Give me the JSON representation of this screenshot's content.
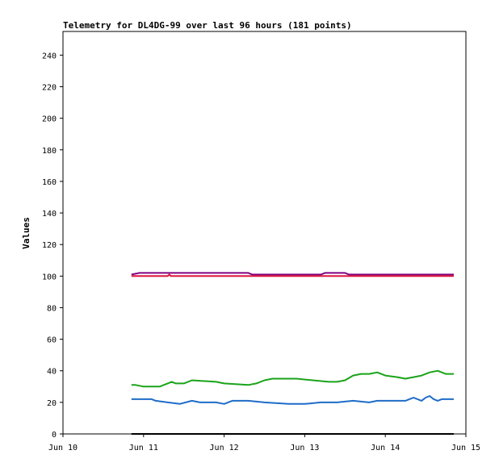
{
  "chart_data": {
    "type": "line",
    "title": "Telemetry for DL4DG-99 over last 96 hours (181 points)",
    "xlabel": "",
    "ylabel": "Values",
    "xlim": [
      0,
      5
    ],
    "ylim": [
      0,
      255
    ],
    "x_ticks": [
      0,
      1,
      2,
      3,
      4,
      5
    ],
    "x_tick_labels": [
      "Jun 10",
      "Jun 11",
      "Jun 12",
      "Jun 13",
      "Jun 14",
      "Jun 15"
    ],
    "y_ticks": [
      0,
      20,
      40,
      60,
      80,
      100,
      120,
      140,
      160,
      180,
      200,
      220,
      240
    ],
    "grid": false,
    "legend": "none",
    "series": [
      {
        "color": "#800080",
        "x": [
          0.85,
          0.95,
          1.3,
          2.3,
          2.35,
          3.2,
          3.25,
          3.5,
          3.55,
          4.85
        ],
        "y": [
          101,
          102,
          102,
          102,
          101,
          101,
          102,
          102,
          101,
          101
        ]
      },
      {
        "color": "#dc143c",
        "x": [
          0.85,
          1.3,
          1.32,
          1.34,
          4.85
        ],
        "y": [
          100,
          100,
          101,
          100,
          100
        ]
      },
      {
        "color": "#1aa31a",
        "x": [
          0.85,
          0.9,
          1.0,
          1.2,
          1.25,
          1.35,
          1.4,
          1.5,
          1.6,
          1.9,
          2.0,
          2.3,
          2.4,
          2.5,
          2.6,
          2.9,
          3.1,
          3.3,
          3.4,
          3.5,
          3.6,
          3.7,
          3.8,
          3.9,
          4.0,
          4.15,
          4.25,
          4.35,
          4.45,
          4.55,
          4.65,
          4.7,
          4.75,
          4.85
        ],
        "y": [
          31,
          31,
          30,
          30,
          31,
          33,
          32,
          32,
          34,
          33,
          32,
          31,
          32,
          34,
          35,
          35,
          34,
          33,
          33,
          34,
          37,
          38,
          38,
          39,
          37,
          36,
          35,
          36,
          37,
          39,
          40,
          39,
          38,
          38
        ]
      },
      {
        "color": "#1e6cc8",
        "x": [
          0.85,
          1.1,
          1.15,
          1.3,
          1.45,
          1.6,
          1.7,
          1.9,
          2.0,
          2.1,
          2.3,
          2.5,
          2.8,
          3.0,
          3.2,
          3.4,
          3.6,
          3.8,
          3.9,
          4.0,
          4.25,
          4.3,
          4.35,
          4.4,
          4.45,
          4.5,
          4.55,
          4.6,
          4.65,
          4.7,
          4.75,
          4.85
        ],
        "y": [
          22,
          22,
          21,
          20,
          19,
          21,
          20,
          20,
          19,
          21,
          21,
          20,
          19,
          19,
          20,
          20,
          21,
          20,
          21,
          21,
          21,
          22,
          23,
          22,
          21,
          23,
          24,
          22,
          21,
          22,
          22,
          22
        ]
      },
      {
        "color": "#000000",
        "x": [
          0.85,
          4.85
        ],
        "y": [
          0,
          0
        ]
      }
    ]
  }
}
